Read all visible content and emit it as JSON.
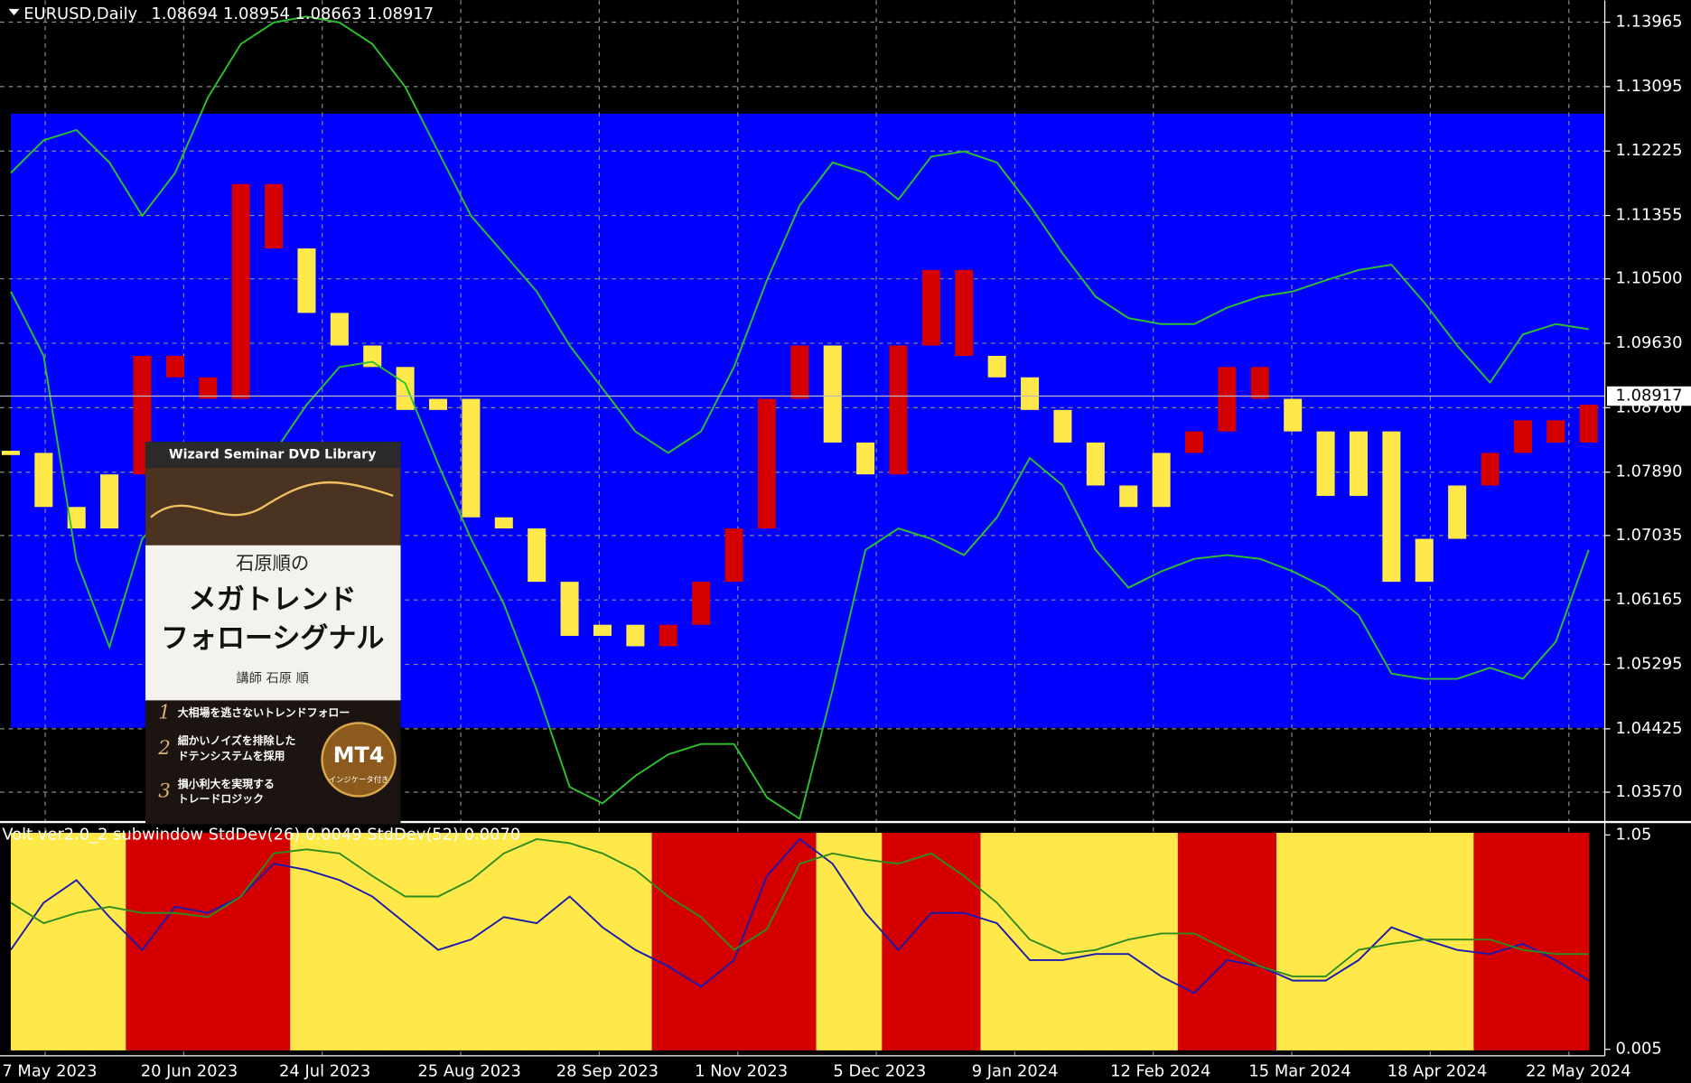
{
  "chart_data": [
    {
      "type": "candlestick",
      "title": "EURUSD,Daily",
      "ohlc_label": "1.08694 1.08954 1.08663 1.08917",
      "ylim": [
        1.0321,
        1.1426
      ],
      "yticks": [
        1.13965,
        1.13095,
        1.12225,
        1.11355,
        {
          "value": 1.105,
          "label": "1.10500"
        },
        {
          "value": 1.0963,
          "label": "1.09630"
        },
        {
          "value": 1.0876,
          "label": "1.08760"
        },
        {
          "value": 1.0789,
          "label": "1.07890"
        },
        1.07035,
        1.06165,
        1.05295,
        1.04425,
        {
          "value": 1.0357,
          "label": "1.03570"
        }
      ],
      "current_price": 1.08917,
      "zone": [
        1.0444,
        1.1273
      ],
      "zone_color": "#0000ff",
      "grid": true,
      "x_labels": [
        "7 May 2023",
        "20 Jun 2023",
        "24 Jul 2023",
        "25 Aug 2023",
        "28 Sep 2023",
        "1 Nov 2023",
        "5 Dec 2023",
        "9 Jan 2024",
        "12 Feb 2024",
        "15 Mar 2024",
        "18 Apr 2024",
        "22 May 2024"
      ],
      "close": [
        1.0815,
        1.0742,
        1.0713,
        1.0786,
        1.0946,
        1.0917,
        1.0888,
        1.1178,
        1.1091,
        1.1004,
        1.096,
        1.0931,
        1.0873,
        1.0888,
        1.0728,
        1.0713,
        1.0641,
        1.0568,
        1.0583,
        1.0554,
        1.0583,
        1.0641,
        1.0713,
        1.0888,
        1.096,
        1.0829,
        1.0786,
        1.096,
        1.1062,
        1.0946,
        1.0917,
        1.0873,
        1.0829,
        1.0771,
        1.0742,
        1.0815,
        1.0844,
        1.0931,
        1.0888,
        1.0844,
        1.0757,
        1.0844,
        1.0641,
        1.0699,
        1.0771,
        1.0815,
        1.0859,
        1.0829,
        1.088
      ],
      "series": [
        {
          "color": "#2bc42b",
          "values": [
            1.1193,
            1.1237,
            1.1251,
            1.1207,
            1.1135,
            1.1193,
            1.1295,
            1.1367,
            1.1396,
            1.1404,
            1.1396,
            1.1367,
            1.1309,
            1.1222,
            1.1135,
            1.1084,
            1.1033,
            1.096,
            1.0902,
            1.0844,
            1.0815,
            1.0844,
            1.0931,
            1.1048,
            1.1149,
            1.1207,
            1.1193,
            1.1157,
            1.1215,
            1.1222,
            1.1207,
            1.1149,
            1.1084,
            1.1026,
            1.0997,
            1.0989,
            1.0989,
            1.1011,
            1.1026,
            1.1033,
            1.1048,
            1.1062,
            1.1069,
            1.1018,
            1.096,
            1.091,
            1.0975,
            1.0989,
            1.0982
          ]
        },
        {
          "color": "#2bc42b",
          "values": [
            1.1033,
            1.0946,
            1.067,
            1.0553,
            1.0699,
            1.075,
            1.0757,
            1.0771,
            1.0815,
            1.088,
            1.0931,
            1.0938,
            1.0909,
            1.08,
            1.0699,
            1.0611,
            1.0495,
            1.0364,
            1.0342,
            1.0379,
            1.0408,
            1.0422,
            1.0422,
            1.035,
            1.0321,
            1.0495,
            1.0684,
            1.0713,
            1.0699,
            1.0677,
            1.0728,
            1.0808,
            1.0771,
            1.0684,
            1.0633,
            1.0655,
            1.0672,
            1.0677,
            1.0672,
            1.0655,
            1.0633,
            1.0596,
            1.0517,
            1.051,
            1.051,
            1.0525,
            1.051,
            1.056,
            1.0684
          ]
        }
      ]
    },
    {
      "type": "line",
      "title": "Volt ver2.0_2 subwindow  StdDev(26) 0.0049  StdDev(52) 0.0070",
      "ylim": [
        0,
        1.05
      ],
      "yticks": [
        1.05,
        0.005
      ],
      "band_colors": [
        "#ffe84a",
        "#ffe84a",
        "#ffe84a",
        "#ffe84a",
        "#d40000",
        "#d40000",
        "#d40000",
        "#d40000",
        "#d40000",
        "#ffe84a",
        "#ffe84a",
        "#ffe84a",
        "#ffe84a",
        "#ffe84a",
        "#ffe84a",
        "#ffe84a",
        "#ffe84a",
        "#ffe84a",
        "#ffe84a",
        "#ffe84a",
        "#d40000",
        "#d40000",
        "#d40000",
        "#d40000",
        "#d40000",
        "#ffe84a",
        "#ffe84a",
        "#d40000",
        "#d40000",
        "#d40000",
        "#ffe84a",
        "#ffe84a",
        "#ffe84a",
        "#ffe84a",
        "#ffe84a",
        "#ffe84a",
        "#d40000",
        "#d40000",
        "#d40000",
        "#ffe84a",
        "#ffe84a",
        "#ffe84a",
        "#ffe84a",
        "#ffe84a",
        "#ffe84a",
        "#d40000",
        "#d40000",
        "#d40000",
        "#d40000"
      ],
      "series": [
        {
          "color": "#1a1ab0",
          "values": [
            0.49,
            0.72,
            0.83,
            0.65,
            0.49,
            0.7,
            0.67,
            0.75,
            0.91,
            0.88,
            0.83,
            0.75,
            0.62,
            0.49,
            0.54,
            0.65,
            0.62,
            0.75,
            0.6,
            0.49,
            0.41,
            0.31,
            0.44,
            0.85,
            1.03,
            0.91,
            0.67,
            0.49,
            0.67,
            0.67,
            0.62,
            0.44,
            0.44,
            0.47,
            0.47,
            0.36,
            0.28,
            0.44,
            0.41,
            0.34,
            0.34,
            0.44,
            0.6,
            0.54,
            0.49,
            0.47,
            0.52,
            0.44,
            0.34
          ]
        },
        {
          "color": "#2e8b1e",
          "values": [
            0.72,
            0.62,
            0.67,
            0.7,
            0.67,
            0.67,
            0.65,
            0.75,
            0.96,
            0.98,
            0.96,
            0.85,
            0.75,
            0.75,
            0.83,
            0.96,
            1.03,
            1.01,
            0.96,
            0.88,
            0.75,
            0.65,
            0.49,
            0.59,
            0.91,
            0.96,
            0.93,
            0.91,
            0.96,
            0.85,
            0.72,
            0.54,
            0.47,
            0.49,
            0.54,
            0.57,
            0.57,
            0.49,
            0.41,
            0.36,
            0.36,
            0.49,
            0.52,
            0.54,
            0.54,
            0.54,
            0.49,
            0.47,
            0.47
          ]
        }
      ]
    }
  ],
  "ad": {
    "series_name": "Wizard Seminar DVD Library",
    "author_heading": "石原順の",
    "title_lines": [
      "メガトレンド",
      "フォローシグナル"
    ],
    "lecturer": "講師 石原 順",
    "points": [
      {
        "num": "1",
        "lines": [
          "大相場を逃さないトレンドフォロー"
        ]
      },
      {
        "num": "2",
        "lines": [
          "細かいノイズを排除した",
          "ドテンシステムを採用"
        ]
      },
      {
        "num": "3",
        "lines": [
          "損小利大を実現する",
          "トレードロジック"
        ]
      }
    ],
    "badge": "MT4",
    "badge_sub": "インジケータ付き"
  }
}
